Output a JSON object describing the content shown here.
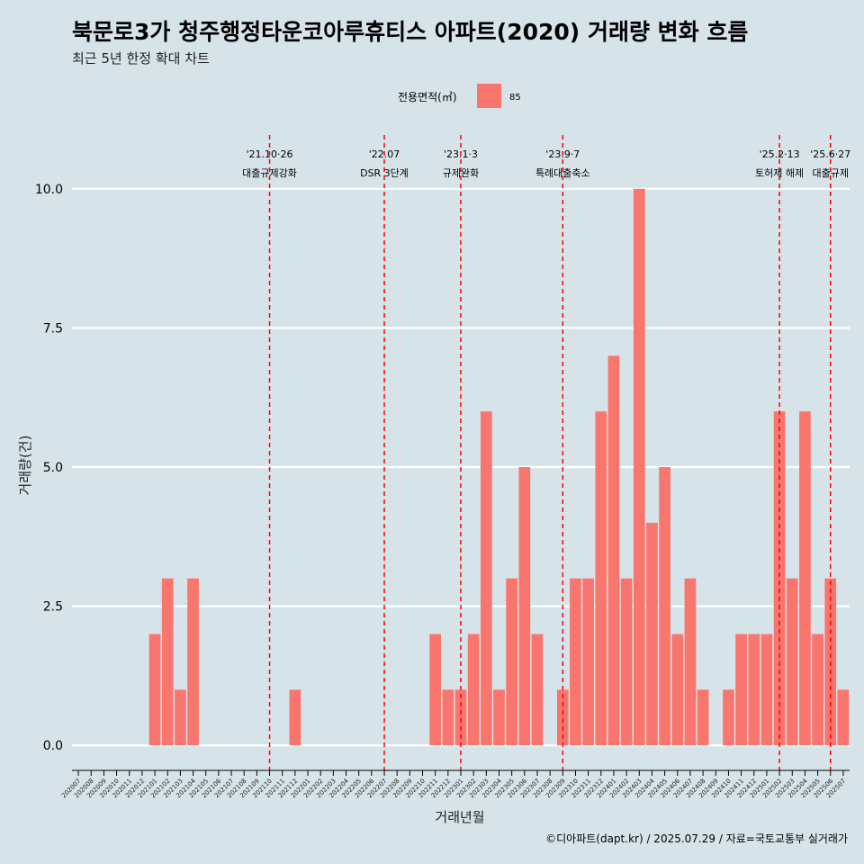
{
  "title": "북문로3가 청주행정타운코아루휴티스 아파트(2020) 거래량 변화 흐름",
  "subtitle": "최근 5년 한정 확대 차트",
  "caption": "©디아파트(dapt.kr) / 2025.07.29 / 자료=국토교통부 실거래가",
  "legend": {
    "title": "전용면적(㎡)",
    "label": "85",
    "color": "#F8766D"
  },
  "background": "#D6E4EA",
  "chart_data": {
    "type": "bar",
    "xlabel": "거래년월",
    "ylabel": "거래량(건)",
    "ylim": [
      -0.45,
      11
    ],
    "yticks": [
      "0.0",
      "2.5",
      "5.0",
      "7.5",
      "10.0"
    ],
    "ytick_values": [
      0,
      2.5,
      5,
      7.5,
      10
    ],
    "categories": [
      "202007",
      "202008",
      "202009",
      "202010",
      "202011",
      "202012",
      "202101",
      "202102",
      "202103",
      "202104",
      "202105",
      "202106",
      "202107",
      "202108",
      "202109",
      "202110",
      "202111",
      "202112",
      "202201",
      "202202",
      "202203",
      "202204",
      "202205",
      "202206",
      "202207",
      "202208",
      "202209",
      "202210",
      "202211",
      "202212",
      "202301",
      "202302",
      "202303",
      "202304",
      "202305",
      "202306",
      "202307",
      "202308",
      "202309",
      "202310",
      "202311",
      "202312",
      "202401",
      "202402",
      "202403",
      "202404",
      "202405",
      "202406",
      "202407",
      "202408",
      "202409",
      "202410",
      "202411",
      "202412",
      "202501",
      "202502",
      "202503",
      "202504",
      "202505",
      "202506",
      "202507"
    ],
    "series": [
      {
        "name": "85",
        "values": [
          0,
          0,
          0,
          0,
          0,
          0,
          2,
          3,
          1,
          3,
          0,
          0,
          0,
          0,
          0,
          0,
          0,
          1,
          0,
          0,
          0,
          0,
          0,
          0,
          0,
          0,
          0,
          0,
          2,
          1,
          1,
          2,
          6,
          1,
          3,
          5,
          2,
          0,
          1,
          3,
          3,
          6,
          7,
          3,
          10,
          4,
          5,
          2,
          3,
          1,
          0,
          1,
          2,
          2,
          2,
          6,
          3,
          6,
          2,
          3,
          1
        ]
      }
    ],
    "events": [
      {
        "date": "'21.10·26",
        "label": "대출규제강화",
        "category": "202110"
      },
      {
        "date": "'22.07",
        "label": "DSR 3단계",
        "category": "202207"
      },
      {
        "date": "'23.1·3",
        "label": "규제완화",
        "category": "202301"
      },
      {
        "date": "'23.9·7",
        "label": "특례대출축소",
        "category": "202309"
      },
      {
        "date": "'25.2·13",
        "label": "토허제 해제",
        "category": "202502"
      },
      {
        "date": "'25.6·27",
        "label": "대출규제",
        "category": "202506"
      }
    ]
  }
}
